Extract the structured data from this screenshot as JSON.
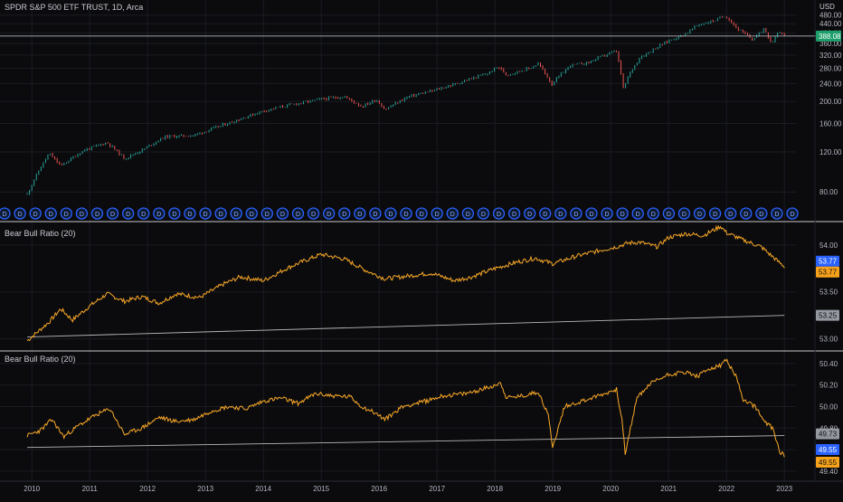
{
  "header": {
    "symbol_title": "SPDR S&P 500 ETF TRUST, 1D, Arca",
    "currency": "USD"
  },
  "colors": {
    "background": "#0b0b0e",
    "grid": "#1a1c22",
    "separator": "#c9c9c9",
    "price_up": "#26a69a",
    "price_down": "#ef5350",
    "indicator_line": "#f7a21b",
    "baseline": "#b8b8b8",
    "divider_line": "#5b9cf6",
    "marker": "#2962ff",
    "axis_text": "#b2b5be",
    "badge_price": "#1e9e6a",
    "badge_blue": "#2962ff",
    "badge_orange": "#f7a21b",
    "badge_gray": "#9598a1"
  },
  "chart_data": [
    {
      "type": "line",
      "name": "price",
      "title": "SPDR S&P 500 ETF TRUST, 1D, Arca",
      "ylabel": "USD",
      "x": [
        2009.92,
        2010.3,
        2010.5,
        2010.9,
        2011.3,
        2011.6,
        2011.9,
        2012.3,
        2012.8,
        2013.0,
        2013.5,
        2014.0,
        2014.5,
        2015.0,
        2015.4,
        2015.7,
        2015.95,
        2016.1,
        2016.5,
        2016.9,
        2017.3,
        2017.9,
        2018.05,
        2018.2,
        2018.6,
        2018.75,
        2018.98,
        2019.3,
        2019.6,
        2019.95,
        2020.1,
        2020.22,
        2020.3,
        2020.5,
        2020.7,
        2021.0,
        2021.3,
        2021.5,
        2021.8,
        2021.98,
        2022.2,
        2022.45,
        2022.55,
        2022.65,
        2022.78,
        2022.9,
        2023.0
      ],
      "values": [
        78,
        118,
        104,
        122,
        132,
        112,
        122,
        140,
        142,
        148,
        164,
        182,
        194,
        205,
        210,
        190,
        204,
        184,
        210,
        222,
        238,
        267,
        285,
        262,
        280,
        294,
        238,
        288,
        296,
        324,
        333,
        225,
        258,
        312,
        335,
        370,
        398,
        434,
        455,
        478,
        415,
        375,
        395,
        420,
        360,
        410,
        388
      ]
    },
    {
      "type": "line",
      "name": "bear-bull-ratio-1",
      "title": "Bear Bull Ratio (20)",
      "x": [
        2009.92,
        2010.3,
        2010.5,
        2010.7,
        2011.0,
        2011.3,
        2011.6,
        2011.9,
        2012.2,
        2012.5,
        2012.9,
        2013.3,
        2013.6,
        2014.0,
        2014.4,
        2014.7,
        2015.0,
        2015.4,
        2015.8,
        2016.1,
        2016.5,
        2016.9,
        2017.3,
        2017.6,
        2018.0,
        2018.4,
        2018.7,
        2019.0,
        2019.4,
        2019.8,
        2020.1,
        2020.3,
        2020.5,
        2020.8,
        2021.0,
        2021.3,
        2021.6,
        2021.9,
        2022.0,
        2022.3,
        2022.6,
        2022.9,
        2023.0
      ],
      "values": [
        52.98,
        53.18,
        53.32,
        53.2,
        53.35,
        53.48,
        53.4,
        53.45,
        53.38,
        53.48,
        53.44,
        53.58,
        53.66,
        53.62,
        53.75,
        53.83,
        53.9,
        53.85,
        53.72,
        53.64,
        53.67,
        53.7,
        53.62,
        53.66,
        53.75,
        53.82,
        53.86,
        53.8,
        53.88,
        53.94,
        53.98,
        54.02,
        54.03,
        53.98,
        54.08,
        54.12,
        54.1,
        54.2,
        54.13,
        54.05,
        53.98,
        53.82,
        53.77
      ],
      "baseline": {
        "x": [
          2009.92,
          2023.0
        ],
        "values": [
          53.02,
          53.25
        ]
      },
      "yticks": [
        53.0,
        53.5,
        54.0
      ],
      "ylim": [
        52.9,
        54.22
      ]
    },
    {
      "type": "line",
      "name": "bear-bull-ratio-2",
      "title": "Bear Bull Ratio (20)",
      "x": [
        2009.92,
        2010.15,
        2010.35,
        2010.55,
        2010.8,
        2011.1,
        2011.35,
        2011.6,
        2011.9,
        2012.2,
        2012.5,
        2012.8,
        2013.1,
        2013.4,
        2013.7,
        2014.0,
        2014.3,
        2014.6,
        2014.9,
        2015.2,
        2015.5,
        2015.7,
        2015.9,
        2016.1,
        2016.4,
        2016.8,
        2017.1,
        2017.5,
        2017.9,
        2018.1,
        2018.2,
        2018.5,
        2018.75,
        2018.92,
        2019.0,
        2019.2,
        2019.5,
        2019.9,
        2020.1,
        2020.2,
        2020.25,
        2020.45,
        2020.7,
        2021.0,
        2021.3,
        2021.5,
        2021.7,
        2021.9,
        2021.98,
        2022.15,
        2022.3,
        2022.5,
        2022.65,
        2022.8,
        2022.92,
        2023.0
      ],
      "values": [
        49.73,
        49.78,
        49.88,
        49.72,
        49.82,
        49.92,
        49.98,
        49.74,
        49.8,
        49.9,
        49.86,
        49.88,
        49.96,
        50.0,
        49.98,
        50.05,
        50.08,
        50.03,
        50.12,
        50.1,
        50.09,
        50.0,
        49.95,
        49.88,
        50.0,
        50.05,
        50.1,
        50.12,
        50.18,
        50.22,
        50.08,
        50.1,
        50.14,
        49.92,
        49.62,
        50.0,
        50.05,
        50.12,
        50.16,
        49.86,
        49.55,
        50.08,
        50.22,
        50.3,
        50.32,
        50.28,
        50.35,
        50.38,
        50.44,
        50.3,
        50.05,
        50.0,
        49.86,
        49.8,
        49.58,
        49.55
      ],
      "baseline": {
        "x": [
          2009.92,
          2023.0
        ],
        "values": [
          49.62,
          49.73
        ]
      },
      "yticks": [
        49.4,
        49.6,
        49.8,
        50.0,
        50.2,
        50.4
      ],
      "ylim": [
        49.34,
        50.5
      ]
    }
  ],
  "price_axis": {
    "ticks": [
      80,
      120,
      160,
      200,
      240,
      280,
      320,
      360,
      400,
      440,
      480
    ],
    "tick_labels": [
      "80.00",
      "120.00",
      "160.00",
      "200.00",
      "240.00",
      "280.00",
      "320.00",
      "360.00",
      "400.00",
      "440.00",
      "480.00"
    ],
    "ylim": [
      62,
      492
    ],
    "current_price": 388.08,
    "current_price_label": "388.08"
  },
  "indicator1_axis": {
    "tick_labels": [
      "53.00",
      "53.50",
      "54.00"
    ],
    "badge_blue_label": "53.77",
    "badge_orange_label": "53.77",
    "badge_gray_label": "53.25"
  },
  "indicator2_axis": {
    "tick_labels": [
      "49.40",
      "49.60",
      "49.80",
      "50.00",
      "50.20",
      "50.40"
    ],
    "badge_gray_label": "49.73",
    "badge_blue_label": "49.55",
    "badge_orange_label": "49.55"
  },
  "time_axis": {
    "labels": [
      "2010",
      "2011",
      "2012",
      "2013",
      "2014",
      "2015",
      "2016",
      "2017",
      "2018",
      "2019",
      "2020",
      "2021",
      "2022",
      "2023"
    ],
    "positions": [
      2010,
      2011,
      2012,
      2013,
      2014,
      2015,
      2016,
      2017,
      2018,
      2019,
      2020,
      2021,
      2022,
      2023
    ],
    "xlim": [
      2009.45,
      2023.2
    ]
  },
  "dividend_markers": {
    "label": "D",
    "count": 52,
    "icon": "dividend-marker-icon"
  },
  "pane_titles": {
    "pane2": "Bear Bull Ratio (20)",
    "pane3": "Bear Bull Ratio (20)"
  }
}
